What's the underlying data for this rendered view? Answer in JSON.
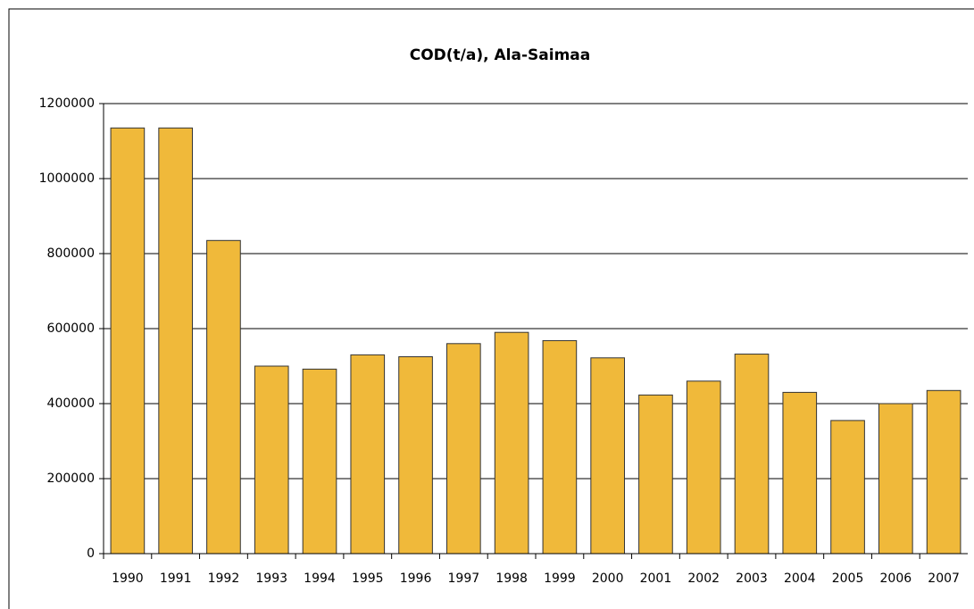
{
  "chart_data": {
    "type": "bar",
    "title": "COD(t/a), Ala-Saimaa",
    "categories": [
      "1990",
      "1991",
      "1992",
      "1993",
      "1994",
      "1995",
      "1996",
      "1997",
      "1998",
      "1999",
      "2000",
      "2001",
      "2002",
      "2003",
      "2004",
      "2005",
      "2006",
      "2007"
    ],
    "values": [
      1135000,
      1135000,
      835000,
      500000,
      492000,
      530000,
      525000,
      560000,
      590000,
      568000,
      522000,
      423000,
      460000,
      532000,
      430000,
      355000,
      400000,
      435000
    ],
    "color": "#f0b93a",
    "ylim": [
      0,
      1200000
    ],
    "yticks": [
      0,
      200000,
      400000,
      600000,
      800000,
      1000000,
      1200000
    ],
    "grid": true
  }
}
